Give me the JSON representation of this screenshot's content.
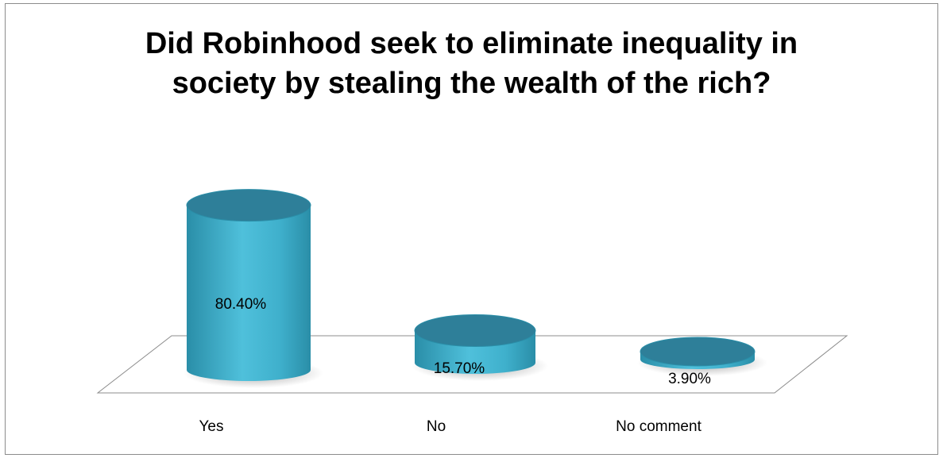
{
  "chart_data": {
    "type": "bar",
    "style": "3d-cylinder",
    "title_lines": [
      "Did Robinhood seek to eliminate inequality in",
      "society by stealing the wealth of the rich?"
    ],
    "categories": [
      "Yes",
      "No",
      "No comment"
    ],
    "values": [
      80.4,
      15.7,
      3.9
    ],
    "data_labels": [
      "80.40%",
      "15.70%",
      "3.90%"
    ],
    "unit": "%",
    "ylim": [
      0,
      100
    ],
    "grid": false,
    "legend": "none",
    "colors": {
      "bar_side": "#3fb0cc",
      "bar_side_light": "#5cc6df",
      "bar_side_dark": "#2a8ea8",
      "bar_top": "#2e7f99",
      "floor_stroke": "#8c8c8c",
      "frame": "#8c8c8c"
    }
  }
}
